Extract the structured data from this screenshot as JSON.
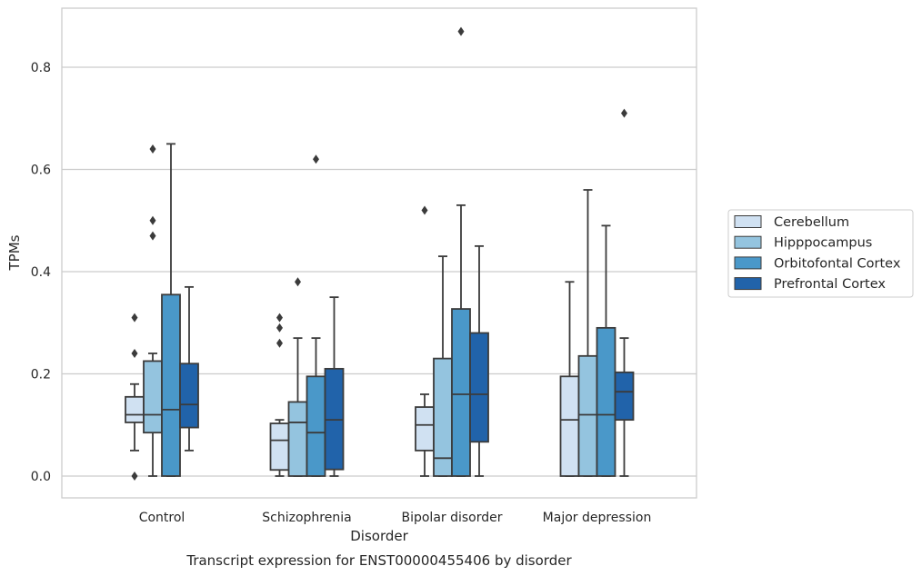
{
  "chart_data": {
    "type": "box",
    "title": "Transcript expression for ENST00000455406 by disorder",
    "xlabel": "Disorder",
    "ylabel": "TPMs",
    "categories": [
      "Control",
      "Schizophrenia",
      "Bipolar disorder",
      "Major depression"
    ],
    "ylim": [
      -0.04,
      0.92
    ],
    "yticks": [
      0.0,
      0.2,
      0.4,
      0.6,
      0.8
    ],
    "ytick_labels": [
      "0.0",
      "0.2",
      "0.4",
      "0.6",
      "0.8"
    ],
    "grid": "horizontal",
    "legend_position": "right",
    "series": [
      {
        "name": "Cerebellum",
        "color": "#d0e1f2",
        "boxes": [
          {
            "whisker_low": 0.05,
            "q1": 0.105,
            "median": 0.12,
            "q3": 0.155,
            "whisker_high": 0.18,
            "outliers": [
              0.0,
              0.24,
              0.31
            ]
          },
          {
            "whisker_low": 0.0,
            "q1": 0.012,
            "median": 0.07,
            "q3": 0.103,
            "whisker_high": 0.11,
            "outliers": [
              0.26,
              0.29,
              0.31
            ]
          },
          {
            "whisker_low": 0.0,
            "q1": 0.05,
            "median": 0.1,
            "q3": 0.135,
            "whisker_high": 0.16,
            "outliers": [
              0.52
            ]
          },
          {
            "whisker_low": 0.0,
            "q1": 0.0,
            "median": 0.11,
            "q3": 0.195,
            "whisker_high": 0.38,
            "outliers": []
          }
        ]
      },
      {
        "name": "Hipppocampus",
        "color": "#94c4df",
        "boxes": [
          {
            "whisker_low": 0.0,
            "q1": 0.085,
            "median": 0.12,
            "q3": 0.225,
            "whisker_high": 0.24,
            "outliers": [
              0.47,
              0.5,
              0.64
            ]
          },
          {
            "whisker_low": 0.0,
            "q1": 0.0,
            "median": 0.105,
            "q3": 0.145,
            "whisker_high": 0.27,
            "outliers": [
              0.38
            ]
          },
          {
            "whisker_low": 0.0,
            "q1": 0.0,
            "median": 0.035,
            "q3": 0.23,
            "whisker_high": 0.43,
            "outliers": []
          },
          {
            "whisker_low": 0.0,
            "q1": 0.0,
            "median": 0.12,
            "q3": 0.235,
            "whisker_high": 0.56,
            "outliers": []
          }
        ]
      },
      {
        "name": "Orbitofontal Cortex",
        "color": "#4a98c9",
        "boxes": [
          {
            "whisker_low": 0.0,
            "q1": 0.0,
            "median": 0.13,
            "q3": 0.355,
            "whisker_high": 0.65,
            "outliers": []
          },
          {
            "whisker_low": 0.0,
            "q1": 0.0,
            "median": 0.085,
            "q3": 0.195,
            "whisker_high": 0.27,
            "outliers": [
              0.62
            ]
          },
          {
            "whisker_low": 0.0,
            "q1": 0.0,
            "median": 0.16,
            "q3": 0.327,
            "whisker_high": 0.53,
            "outliers": [
              0.87
            ]
          },
          {
            "whisker_low": 0.0,
            "q1": 0.0,
            "median": 0.12,
            "q3": 0.29,
            "whisker_high": 0.49,
            "outliers": []
          }
        ]
      },
      {
        "name": "Prefrontal Cortex",
        "color": "#2163aa",
        "boxes": [
          {
            "whisker_low": 0.05,
            "q1": 0.095,
            "median": 0.14,
            "q3": 0.22,
            "whisker_high": 0.37,
            "outliers": []
          },
          {
            "whisker_low": 0.0,
            "q1": 0.013,
            "median": 0.11,
            "q3": 0.21,
            "whisker_high": 0.35,
            "outliers": []
          },
          {
            "whisker_low": 0.0,
            "q1": 0.067,
            "median": 0.16,
            "q3": 0.28,
            "whisker_high": 0.45,
            "outliers": []
          },
          {
            "whisker_low": 0.0,
            "q1": 0.11,
            "median": 0.165,
            "q3": 0.203,
            "whisker_high": 0.27,
            "outliers": [
              0.71
            ]
          }
        ]
      }
    ]
  }
}
